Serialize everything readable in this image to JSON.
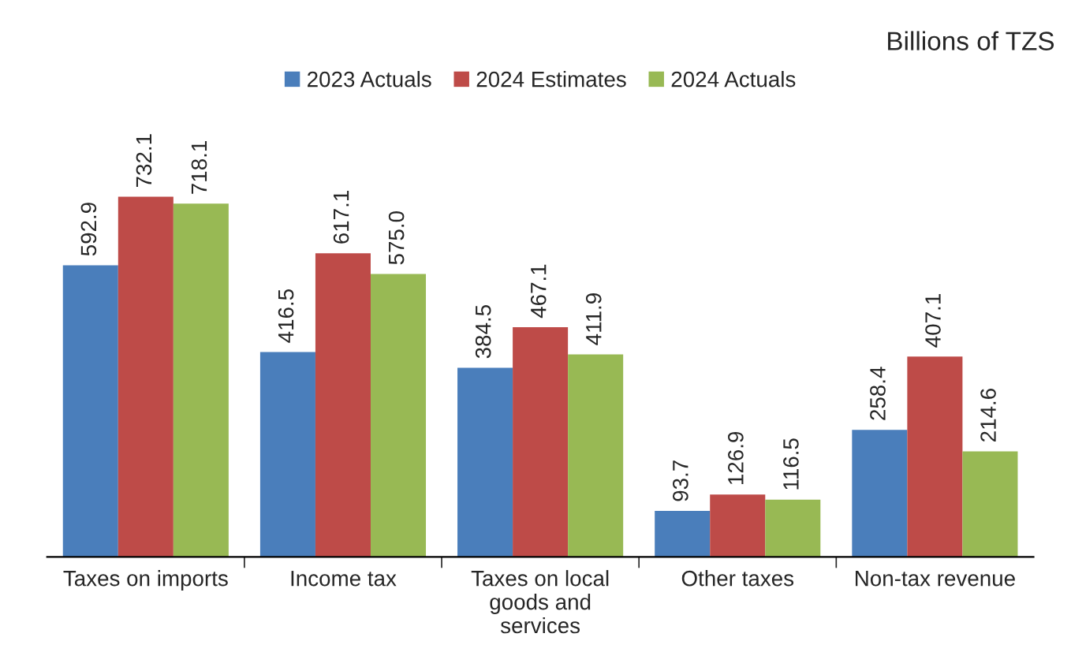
{
  "chart_data": {
    "type": "bar",
    "subtitle": "Billions of TZS",
    "categories": [
      "Taxes on imports",
      "Income tax",
      "Taxes on local\ngoods and\nservices",
      "Other taxes",
      "Non-tax revenue"
    ],
    "series": [
      {
        "name": "2023 Actuals",
        "color": "#4a7ebb",
        "values": [
          592.9,
          416.5,
          384.5,
          93.7,
          258.4
        ]
      },
      {
        "name": "2024 Estimates",
        "color": "#be4b48",
        "values": [
          732.1,
          617.1,
          467.1,
          126.9,
          407.1
        ]
      },
      {
        "name": "2024 Actuals",
        "color": "#98b954",
        "values": [
          718.1,
          575.0,
          411.9,
          116.5,
          214.6
        ],
        "value_labels": [
          "718.1",
          "575.0",
          "411.9",
          "116.5",
          "214.6"
        ]
      }
    ],
    "data_labels": true,
    "legend": "top",
    "grid": false
  }
}
